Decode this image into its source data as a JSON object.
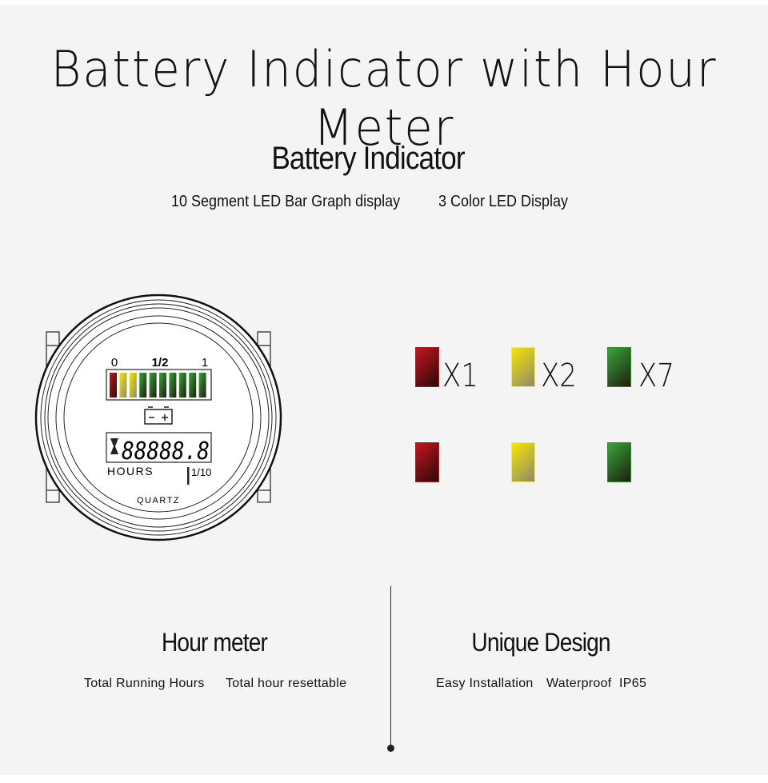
{
  "title": "Battery Indicator with Hour Meter",
  "battery": {
    "heading": "Battery Indicator",
    "features": [
      "10 Segment LED Bar Graph display",
      "3 Color LED Display"
    ]
  },
  "gauge": {
    "scale": [
      "0",
      "1/2",
      "1"
    ],
    "digits": "88888.8",
    "hours_label": "HOURS",
    "tenth_label": "1/10",
    "brand_label": "QUARTZ",
    "segments": [
      "red",
      "yellow",
      "yellow",
      "green",
      "green",
      "green",
      "green",
      "green",
      "green",
      "green"
    ]
  },
  "legend": [
    {
      "color": "red",
      "count": "X1"
    },
    {
      "color": "yellow",
      "count": "X2"
    },
    {
      "color": "green",
      "count": "X7"
    }
  ],
  "colors": {
    "red": "#c4161c",
    "yellow": "#f7e600",
    "green": "#2c8a2c"
  },
  "hour_meter": {
    "heading": "Hour meter",
    "features": [
      "Total Running Hours",
      "Total hour resettable"
    ]
  },
  "unique": {
    "heading": "Unique Design",
    "features": [
      "Easy Installation",
      "Waterproof  IP65"
    ]
  }
}
